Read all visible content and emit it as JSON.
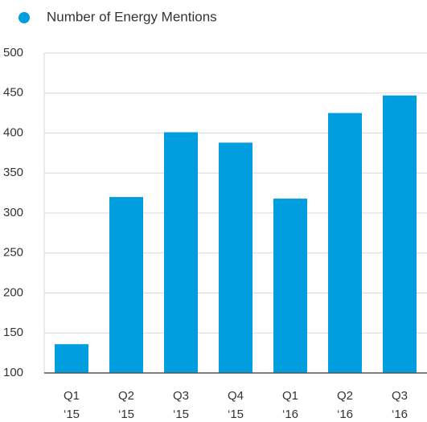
{
  "chart_data": {
    "type": "bar",
    "legend": "Number of Energy Mentions",
    "categories": [
      [
        "Q1",
        "‘15"
      ],
      [
        "Q2",
        "‘15"
      ],
      [
        "Q3",
        "‘15"
      ],
      [
        "Q4",
        "‘15"
      ],
      [
        "Q1",
        "‘16"
      ],
      [
        "Q2",
        "‘16"
      ],
      [
        "Q3",
        "‘16"
      ]
    ],
    "values": [
      136,
      320,
      401,
      388,
      318,
      425,
      447
    ],
    "color": "#009ddf",
    "ylim": [
      100,
      500
    ],
    "yticks": [
      100,
      150,
      200,
      250,
      300,
      350,
      400,
      450,
      500
    ],
    "grid": true
  }
}
